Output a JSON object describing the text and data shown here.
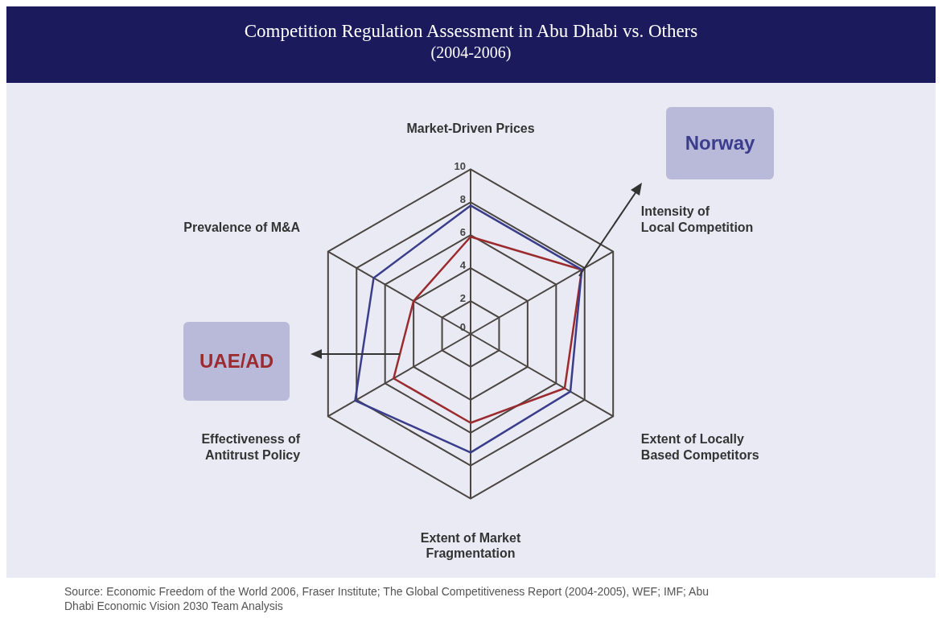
{
  "chart_data": {
    "type": "radar",
    "title": "Competition Regulation Assessment in Abu Dhabi vs. Others",
    "subtitle": "(2004-2006)",
    "categories": [
      "Market-Driven Prices",
      "Intensity of Local Competition",
      "Extent of Locally Based Competitors",
      "Extent of Market Fragmentation",
      "Effectiveness of Antitrust Policy",
      "Prevalence of M&A"
    ],
    "series": [
      {
        "name": "Norway",
        "color": "#3a3d8c",
        "values": [
          7.8,
          7.8,
          7.0,
          7.2,
          8.1,
          6.8
        ]
      },
      {
        "name": "UAE/AD",
        "color": "#9b2b2e",
        "values": [
          5.9,
          7.8,
          6.6,
          5.4,
          5.4,
          4.0
        ]
      }
    ],
    "ylim": [
      0,
      10
    ],
    "yticks": [
      0,
      2,
      4,
      6,
      8,
      10
    ],
    "grid": true,
    "legend": false,
    "marker": "none",
    "annotations": [
      "Source: Economic Freedom of the World 2006, Fraser Institute; The Global Competitiveness Report (2004-2005), WEF; IMF; Abu Dhabi Economic Vision 2030 Team Analysis"
    ]
  }
}
